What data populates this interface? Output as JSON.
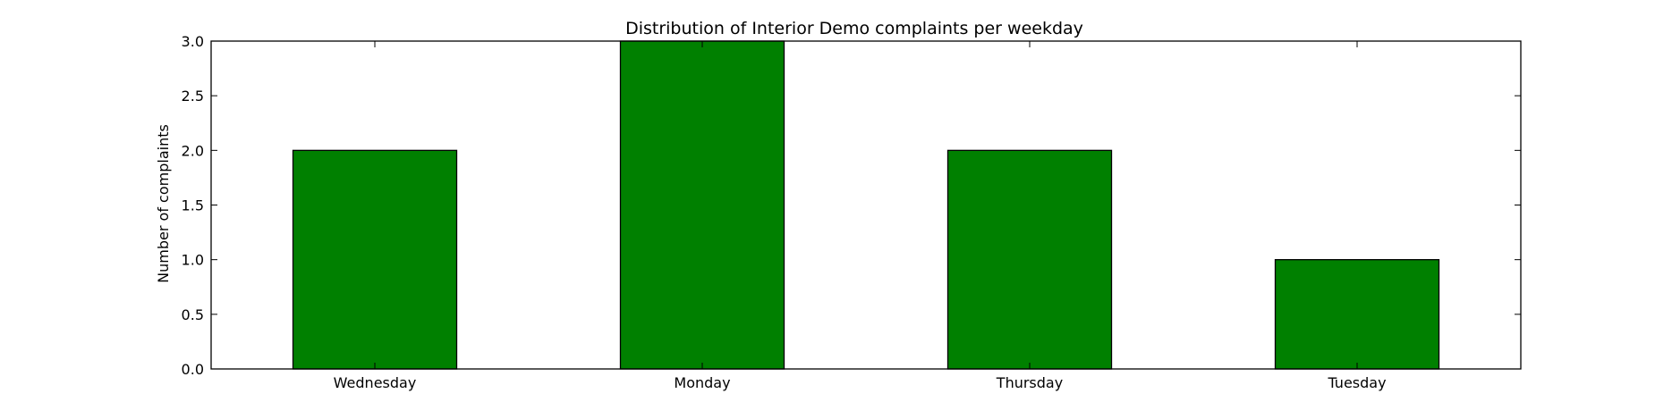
{
  "chart_data": {
    "type": "bar",
    "title": "Distribution of  Interior Demo complaints per weekday",
    "xlabel": "",
    "ylabel": "Number of complaints",
    "categories": [
      "Wednesday",
      "Monday",
      "Thursday",
      "Tuesday"
    ],
    "values": [
      2,
      3,
      2,
      1
    ],
    "ylim": [
      0,
      3.0
    ],
    "yticks": [
      "0.0",
      "0.5",
      "1.0",
      "1.5",
      "2.0",
      "2.5",
      "3.0"
    ],
    "bar_color": "#008000",
    "edge_color": "#000000",
    "grid": false,
    "legend": "none"
  }
}
